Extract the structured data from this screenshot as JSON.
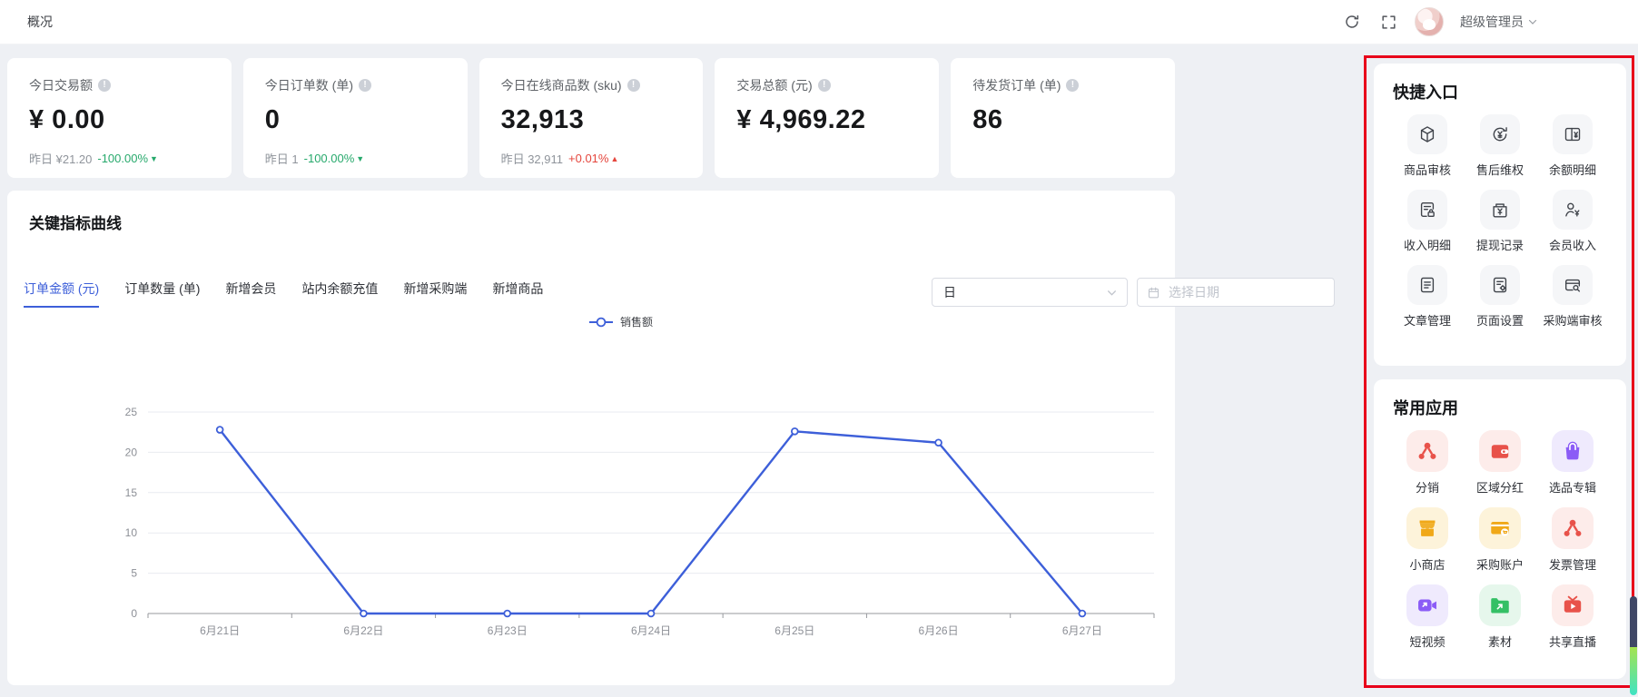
{
  "header": {
    "title": "概况",
    "user": {
      "name": "超级管理员"
    }
  },
  "stat_cards": [
    {
      "label": "今日交易额",
      "value": "¥ 0.00",
      "footer_label": "昨日",
      "footer_value": "¥21.20",
      "delta": "-100.00%",
      "trend": "down"
    },
    {
      "label": "今日订单数 (单)",
      "value": "0",
      "footer_label": "昨日",
      "footer_value": "1",
      "delta": "-100.00%",
      "trend": "down"
    },
    {
      "label": "今日在线商品数 (sku)",
      "value": "32,913",
      "footer_label": "昨日",
      "footer_value": "32,911",
      "delta": "+0.01%",
      "trend": "up"
    },
    {
      "label": "交易总额 (元)",
      "value": "¥ 4,969.22"
    },
    {
      "label": "待发货订单 (单)",
      "value": "86"
    }
  ],
  "chart_panel": {
    "title": "关键指标曲线",
    "tabs": [
      {
        "label": "订单金额 (元)",
        "active": true
      },
      {
        "label": "订单数量 (单)",
        "active": false
      },
      {
        "label": "新增会员",
        "active": false
      },
      {
        "label": "站内余额充值",
        "active": false
      },
      {
        "label": "新增采购端",
        "active": false
      },
      {
        "label": "新增商品",
        "active": false
      }
    ],
    "period_select": {
      "value": "日"
    },
    "date_picker": {
      "placeholder": "选择日期"
    }
  },
  "chart_data": {
    "type": "line",
    "title": "销售额",
    "x": [
      "6月21日",
      "6月22日",
      "6月23日",
      "6月24日",
      "6月25日",
      "6月26日",
      "6月27日"
    ],
    "series": [
      {
        "name": "销售额",
        "values": [
          22.8,
          0,
          0,
          0,
          22.6,
          21.2,
          0
        ],
        "color": "#3d5fd9"
      }
    ],
    "xlabel": "",
    "ylabel": "",
    "ylim": [
      0,
      25
    ],
    "yticks": [
      0,
      5,
      10,
      15,
      20,
      25
    ],
    "grid": true,
    "legend_position": "top-center"
  },
  "quick_entry": {
    "title": "快捷入口",
    "items": [
      {
        "label": "商品审核",
        "icon": "cube-icon"
      },
      {
        "label": "售后维权",
        "icon": "refund-circle-icon"
      },
      {
        "label": "余额明细",
        "icon": "balance-book-icon"
      },
      {
        "label": "收入明细",
        "icon": "income-lock-icon"
      },
      {
        "label": "提现记录",
        "icon": "withdraw-icon"
      },
      {
        "label": "会员收入",
        "icon": "member-yen-icon"
      },
      {
        "label": "文章管理",
        "icon": "article-icon"
      },
      {
        "label": "页面设置",
        "icon": "page-gear-icon"
      },
      {
        "label": "采购端审核",
        "icon": "card-search-icon"
      }
    ]
  },
  "common_apps": {
    "title": "常用应用",
    "items": [
      {
        "label": "分销",
        "icon": "share-network-icon",
        "icon_color": "#e8524a",
        "tile_bg": "#fdecea"
      },
      {
        "label": "区域分红",
        "icon": "wallet-icon",
        "icon_color": "#e8524a",
        "tile_bg": "#fdecea"
      },
      {
        "label": "选品专辑",
        "icon": "bag-icon",
        "icon_color": "#8b5cf6",
        "tile_bg": "#efeafd"
      },
      {
        "label": "小商店",
        "icon": "store-icon",
        "icon_color": "#f0a818",
        "tile_bg": "#fdf3da"
      },
      {
        "label": "采购账户",
        "icon": "card-cart-icon",
        "icon_color": "#f0a818",
        "tile_bg": "#fdf3da"
      },
      {
        "label": "发票管理",
        "icon": "share-network-icon",
        "icon_color": "#e8524a",
        "tile_bg": "#fdecea"
      },
      {
        "label": "短视频",
        "icon": "video-arrow-icon",
        "icon_color": "#8b5cf6",
        "tile_bg": "#efeafd"
      },
      {
        "label": "素材",
        "icon": "folder-arrow-icon",
        "icon_color": "#34c065",
        "tile_bg": "#e6f7ec"
      },
      {
        "label": "共享直播",
        "icon": "live-tv-icon",
        "icon_color": "#e8524a",
        "tile_bg": "#fdecea"
      }
    ]
  },
  "colors": {
    "accent": "#3d5fd9",
    "up_red": "#e5453c",
    "down_green": "#27a96c",
    "annotation_red": "#e8001a"
  }
}
